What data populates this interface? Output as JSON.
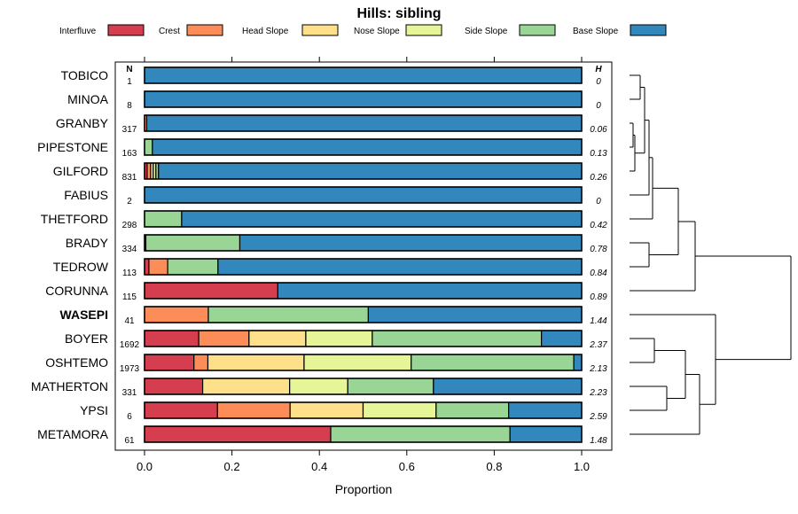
{
  "chart_data": {
    "type": "bar",
    "orientation": "horizontal",
    "stacked": true,
    "title": "Hills: sibling",
    "xlabel": "Proportion",
    "ylabel": "",
    "xlim": [
      0,
      1
    ],
    "x_ticks": [
      0.0,
      0.2,
      0.4,
      0.6,
      0.8,
      1.0
    ],
    "x_tick_labels": [
      "0.0",
      "0.2",
      "0.4",
      "0.6",
      "0.8",
      "1.0"
    ],
    "n_header": "N",
    "h_header": "H",
    "legend": [
      {
        "name": "Interfluve",
        "color": "#d53e4f"
      },
      {
        "name": "Crest",
        "color": "#fc8d59"
      },
      {
        "name": "Head Slope",
        "color": "#fee08b"
      },
      {
        "name": "Nose Slope",
        "color": "#e6f598"
      },
      {
        "name": "Side Slope",
        "color": "#99d594"
      },
      {
        "name": "Base Slope",
        "color": "#3288bd"
      }
    ],
    "rows": [
      {
        "label": "TOBICO",
        "n": "1",
        "h": "0",
        "bold": false,
        "values": [
          0,
          0,
          0,
          0,
          0,
          1.0
        ]
      },
      {
        "label": "MINOA",
        "n": "8",
        "h": "0",
        "bold": false,
        "values": [
          0,
          0,
          0,
          0,
          0,
          1.0
        ]
      },
      {
        "label": "GRANBY",
        "n": "317",
        "h": "0.06",
        "bold": false,
        "values": [
          0,
          0.005,
          0,
          0,
          0,
          0.995
        ]
      },
      {
        "label": "PIPESTONE",
        "n": "163",
        "h": "0.13",
        "bold": false,
        "values": [
          0,
          0,
          0,
          0,
          0.018,
          0.982
        ]
      },
      {
        "label": "GILFORD",
        "n": "831",
        "h": "0.26",
        "bold": false,
        "values": [
          0.006,
          0.008,
          0.006,
          0.006,
          0.006,
          0.968
        ]
      },
      {
        "label": "FABIUS",
        "n": "2",
        "h": "0",
        "bold": false,
        "values": [
          0,
          0,
          0,
          0,
          0,
          1.0
        ]
      },
      {
        "label": "THETFORD",
        "n": "298",
        "h": "0.42",
        "bold": false,
        "values": [
          0,
          0,
          0,
          0,
          0.085,
          0.915
        ]
      },
      {
        "label": "BRADY",
        "n": "334",
        "h": "0.78",
        "bold": false,
        "values": [
          0.003,
          0,
          0,
          0,
          0.215,
          0.782
        ]
      },
      {
        "label": "TEDROW",
        "n": "113",
        "h": "0.84",
        "bold": false,
        "values": [
          0.01,
          0.043,
          0,
          0,
          0.115,
          0.832
        ]
      },
      {
        "label": "CORUNNA",
        "n": "115",
        "h": "0.89",
        "bold": false,
        "values": [
          0.305,
          0,
          0,
          0,
          0,
          0.695
        ]
      },
      {
        "label": "WASEPI",
        "n": "41",
        "h": "1.44",
        "bold": true,
        "values": [
          0,
          0.146,
          0,
          0,
          0.366,
          0.488
        ]
      },
      {
        "label": "BOYER",
        "n": "1692",
        "h": "2.37",
        "bold": false,
        "values": [
          0.124,
          0.115,
          0.13,
          0.152,
          0.387,
          0.092
        ]
      },
      {
        "label": "OSHTEMO",
        "n": "1973",
        "h": "2.13",
        "bold": false,
        "values": [
          0.113,
          0.032,
          0.22,
          0.245,
          0.372,
          0.018
        ]
      },
      {
        "label": "MATHERTON",
        "n": "331",
        "h": "2.23",
        "bold": false,
        "values": [
          0.133,
          0,
          0.199,
          0.133,
          0.196,
          0.339
        ]
      },
      {
        "label": "YPSI",
        "n": "6",
        "h": "2.59",
        "bold": false,
        "values": [
          0.167,
          0.166,
          0.167,
          0.167,
          0.166,
          0.167
        ]
      },
      {
        "label": "METAMORA",
        "n": "61",
        "h": "1.48",
        "bold": false,
        "values": [
          0.426,
          0,
          0,
          0,
          0.41,
          0.164
        ]
      }
    ]
  }
}
